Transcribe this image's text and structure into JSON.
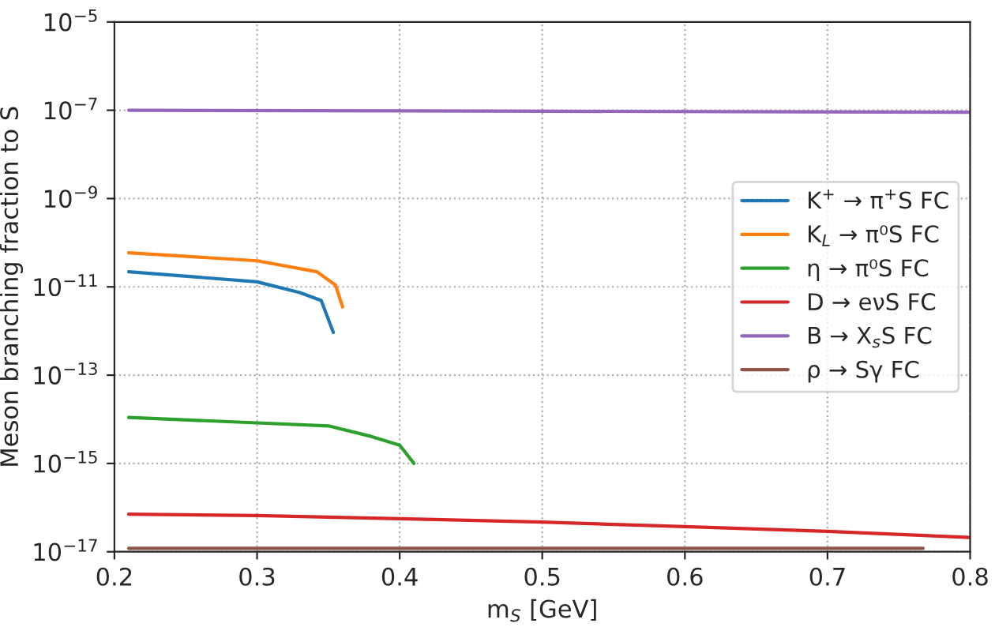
{
  "chart_data": {
    "type": "line",
    "xlabel": "m$_{S}$ [GeV]",
    "ylabel": "Meson branching fraction to S",
    "log": "y",
    "grid": true,
    "legend": "right",
    "line_style": "solid",
    "marker": "none",
    "xlim": [
      0.2,
      0.8
    ],
    "xticks": [
      0.2,
      0.3,
      0.4,
      0.5,
      0.6,
      0.7,
      0.8
    ],
    "ylim": [
      1e-17,
      1e-05
    ],
    "yticks": [
      {
        "value": 1e-17,
        "label": "10$^{−17}$"
      },
      {
        "value": 1e-15,
        "label": "10$^{−15}$"
      },
      {
        "value": 1e-13,
        "label": "10$^{−13}$"
      },
      {
        "value": 1e-11,
        "label": "10$^{−11}$"
      },
      {
        "value": 1e-09,
        "label": "10$^{−9}$"
      },
      {
        "value": 1e-07,
        "label": "10$^{−7}$"
      },
      {
        "value": 1e-05,
        "label": "10$^{−5}$"
      }
    ],
    "series": [
      {
        "name": "K$^{+}$ → π$^{+}$S FC",
        "color": "#1f77b4",
        "x": [
          0.21,
          0.3,
          0.33,
          0.345,
          0.3535
        ],
        "values": [
          2.2e-11,
          1.3e-11,
          7.4e-12,
          4.9e-12,
          9.3e-13
        ]
      },
      {
        "name": "K$_{L}$ → π⁰S FC",
        "color": "#ff7f0e",
        "x": [
          0.21,
          0.3,
          0.342,
          0.355,
          0.36
        ],
        "values": [
          5.9e-11,
          3.9e-11,
          2.2e-11,
          1.1e-11,
          3.5e-12
        ]
      },
      {
        "name": "η → π⁰S FC",
        "color": "#2ca02c",
        "x": [
          0.21,
          0.3,
          0.35,
          0.38,
          0.4,
          0.41
        ],
        "values": [
          1.1e-14,
          8.3e-15,
          7.1e-15,
          4.1e-15,
          2.6e-15,
          1e-15
        ]
      },
      {
        "name": "D → eνS FC",
        "color": "#d62728",
        "x": [
          0.21,
          0.3,
          0.4,
          0.5,
          0.6,
          0.7,
          0.8
        ],
        "values": [
          7.1e-17,
          6.6e-17,
          5.6e-17,
          4.7e-17,
          3.7e-17,
          2.9e-17,
          2.1e-17
        ]
      },
      {
        "name": "B → X$_{s}$S FC",
        "color": "#9467bd",
        "x": [
          0.21,
          0.5,
          0.8
        ],
        "values": [
          1e-07,
          9.5e-08,
          9e-08
        ]
      },
      {
        "name": "ρ → Sγ FC",
        "color": "#8c564b",
        "x": [
          0.21,
          0.767
        ],
        "values": [
          1.2e-17,
          1.2e-17
        ]
      }
    ]
  }
}
